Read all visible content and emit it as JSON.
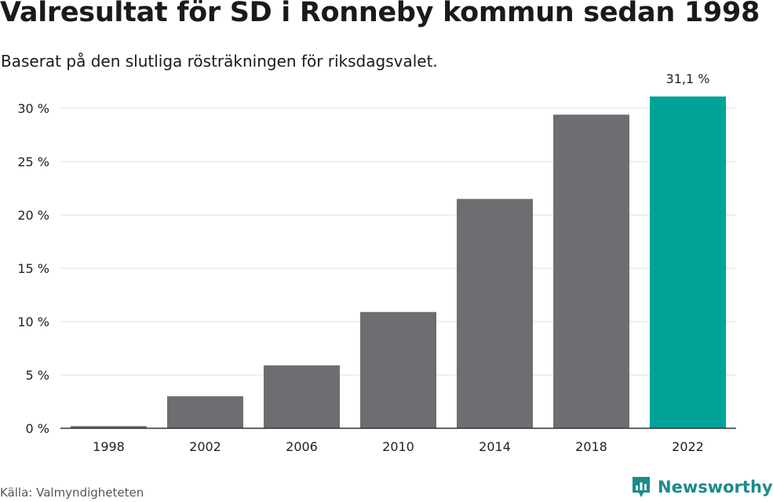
{
  "title": "Valresultat för SD i Ronneby kommun sedan 1998",
  "subtitle": "Baserat på den slutliga rösträkningen för riksdagsvalet.",
  "source": "Källa: Valmyndigheteten",
  "brand": {
    "name": "Newsworthy",
    "icon": "newsworthy-logo-icon",
    "color": "#1a8c8a"
  },
  "colors": {
    "bar": "#6e6d72",
    "highlight": "#00a398",
    "grid": "#dddddd",
    "axis": "#333333"
  },
  "chart_data": {
    "type": "bar",
    "categories": [
      "1998",
      "2002",
      "2006",
      "2010",
      "2014",
      "2018",
      "2022"
    ],
    "values": [
      0.2,
      3.0,
      5.9,
      10.9,
      21.5,
      29.4,
      31.1
    ],
    "unit": "%",
    "highlight_index": 6,
    "data_labels": [
      {
        "index": 6,
        "text": "31,1 %"
      }
    ],
    "yticks": [
      0,
      5,
      10,
      15,
      20,
      25,
      30
    ],
    "ytick_labels": [
      "0 %",
      "5 %",
      "10 %",
      "15 %",
      "20 %",
      "25 %",
      "30 %"
    ],
    "ylim": [
      0,
      31.1
    ],
    "grid": true,
    "legend": "none",
    "xlabel": "",
    "ylabel": ""
  }
}
